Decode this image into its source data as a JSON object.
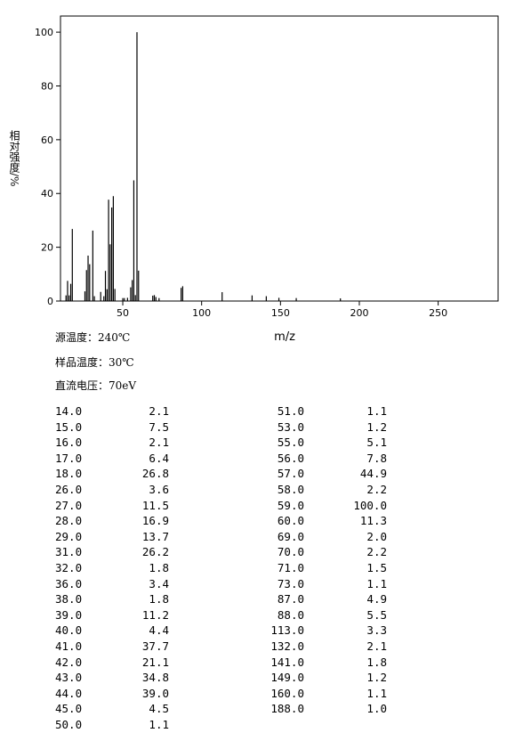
{
  "chart_data": {
    "type": "bar",
    "y_label": "相对强度/%",
    "x_label": "m/z",
    "x": [
      14,
      15,
      16,
      17,
      18,
      26,
      27,
      28,
      29,
      31,
      32,
      36,
      38,
      39,
      40,
      41,
      42,
      43,
      44,
      45,
      50,
      51,
      53,
      55,
      56,
      57,
      58,
      59,
      60,
      69,
      70,
      71,
      73,
      87,
      88,
      113,
      132,
      141,
      149,
      160,
      188
    ],
    "values": [
      2.1,
      7.5,
      2.1,
      6.4,
      26.8,
      3.6,
      11.5,
      16.9,
      13.7,
      26.2,
      1.8,
      3.4,
      1.8,
      11.2,
      4.4,
      37.7,
      21.1,
      34.8,
      39.0,
      4.5,
      1.1,
      1.1,
      1.2,
      5.1,
      7.8,
      44.9,
      2.2,
      100.0,
      11.3,
      2.0,
      2.2,
      1.5,
      1.1,
      4.9,
      5.5,
      3.3,
      2.1,
      1.8,
      1.2,
      1.1,
      1.0
    ],
    "color": "#000000",
    "xlim": [
      10.5,
      288
    ],
    "xticks": [
      50,
      100,
      150,
      200,
      250
    ],
    "ylim": [
      0,
      106
    ],
    "yticks": [
      0,
      20,
      40,
      60,
      80,
      100
    ]
  },
  "conditions": [
    "源温度：240℃",
    "样品温度：30℃",
    "直流电压：70eV"
  ],
  "peak_table": {
    "columns": [
      [
        [
          "14.0",
          "2.1"
        ],
        [
          "15.0",
          "7.5"
        ],
        [
          "16.0",
          "2.1"
        ],
        [
          "17.0",
          "6.4"
        ],
        [
          "18.0",
          "26.8"
        ],
        [
          "26.0",
          "3.6"
        ],
        [
          "27.0",
          "11.5"
        ],
        [
          "28.0",
          "16.9"
        ],
        [
          "29.0",
          "13.7"
        ],
        [
          "31.0",
          "26.2"
        ],
        [
          "32.0",
          "1.8"
        ],
        [
          "36.0",
          "3.4"
        ],
        [
          "38.0",
          "1.8"
        ],
        [
          "39.0",
          "11.2"
        ],
        [
          "40.0",
          "4.4"
        ],
        [
          "41.0",
          "37.7"
        ],
        [
          "42.0",
          "21.1"
        ],
        [
          "43.0",
          "34.8"
        ],
        [
          "44.0",
          "39.0"
        ],
        [
          "45.0",
          "4.5"
        ],
        [
          "50.0",
          "1.1"
        ]
      ],
      [
        [
          "51.0",
          "1.1"
        ],
        [
          "53.0",
          "1.2"
        ],
        [
          "55.0",
          "5.1"
        ],
        [
          "56.0",
          "7.8"
        ],
        [
          "57.0",
          "44.9"
        ],
        [
          "58.0",
          "2.2"
        ],
        [
          "59.0",
          "100.0"
        ],
        [
          "60.0",
          "11.3"
        ],
        [
          "69.0",
          "2.0"
        ],
        [
          "70.0",
          "2.2"
        ],
        [
          "71.0",
          "1.5"
        ],
        [
          "73.0",
          "1.1"
        ],
        [
          "87.0",
          "4.9"
        ],
        [
          "88.0",
          "5.5"
        ],
        [
          "113.0",
          "3.3"
        ],
        [
          "132.0",
          "2.1"
        ],
        [
          "141.0",
          "1.8"
        ],
        [
          "149.0",
          "1.2"
        ],
        [
          "160.0",
          "1.1"
        ],
        [
          "188.0",
          "1.0"
        ]
      ]
    ]
  }
}
